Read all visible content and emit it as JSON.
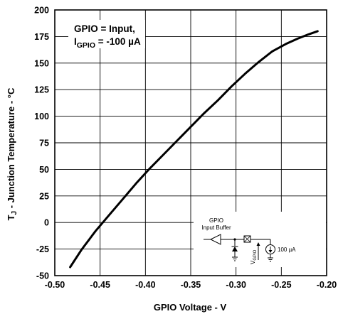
{
  "chart_data": {
    "type": "line",
    "xlabel": "GPIO Voltage - V",
    "ylabel_main": "T",
    "ylabel_sub": "J",
    "ylabel_rest": " - Junction Temperature - °C",
    "xlim": [
      -0.5,
      -0.2
    ],
    "ylim": [
      -50,
      200
    ],
    "x_ticks": [
      {
        "v": -0.5,
        "label": "-0.50"
      },
      {
        "v": -0.45,
        "label": "-0.45"
      },
      {
        "v": -0.4,
        "label": "-0.40"
      },
      {
        "v": -0.35,
        "label": "-0.35"
      },
      {
        "v": -0.3,
        "label": "-0.30"
      },
      {
        "v": -0.25,
        "label": "-0.25"
      },
      {
        "v": -0.2,
        "label": "-0.20"
      }
    ],
    "y_ticks": [
      {
        "v": -50,
        "label": "-50"
      },
      {
        "v": -25,
        "label": "-25"
      },
      {
        "v": 0,
        "label": "0"
      },
      {
        "v": 25,
        "label": "25"
      },
      {
        "v": 50,
        "label": "50"
      },
      {
        "v": 75,
        "label": "75"
      },
      {
        "v": 100,
        "label": "100"
      },
      {
        "v": 125,
        "label": "125"
      },
      {
        "v": 150,
        "label": "150"
      },
      {
        "v": 175,
        "label": "175"
      },
      {
        "v": 200,
        "label": "200"
      }
    ],
    "grid": true,
    "series": [
      {
        "points": [
          [
            -0.483,
            -42
          ],
          [
            -0.47,
            -25
          ],
          [
            -0.455,
            -8
          ],
          [
            -0.44,
            7
          ],
          [
            -0.425,
            22
          ],
          [
            -0.41,
            37
          ],
          [
            -0.395,
            51
          ],
          [
            -0.38,
            64
          ],
          [
            -0.365,
            77
          ],
          [
            -0.35,
            90
          ],
          [
            -0.335,
            103
          ],
          [
            -0.32,
            115
          ],
          [
            -0.305,
            128
          ],
          [
            -0.29,
            140
          ],
          [
            -0.275,
            151
          ],
          [
            -0.26,
            161
          ],
          [
            -0.245,
            168
          ],
          [
            -0.232,
            173
          ],
          [
            -0.22,
            177
          ],
          [
            -0.21,
            180
          ]
        ]
      }
    ],
    "annotation": {
      "line1": "GPIO = Input,",
      "line2_main": "I",
      "line2_sub": "GPIO",
      "line2_rest": " = -100 µA"
    },
    "inset": {
      "title_line1": "GPIO",
      "title_line2": "Input Buffer",
      "v_label_main": "V",
      "v_label_sub": "GPIO",
      "current_label": "100 µA"
    }
  }
}
